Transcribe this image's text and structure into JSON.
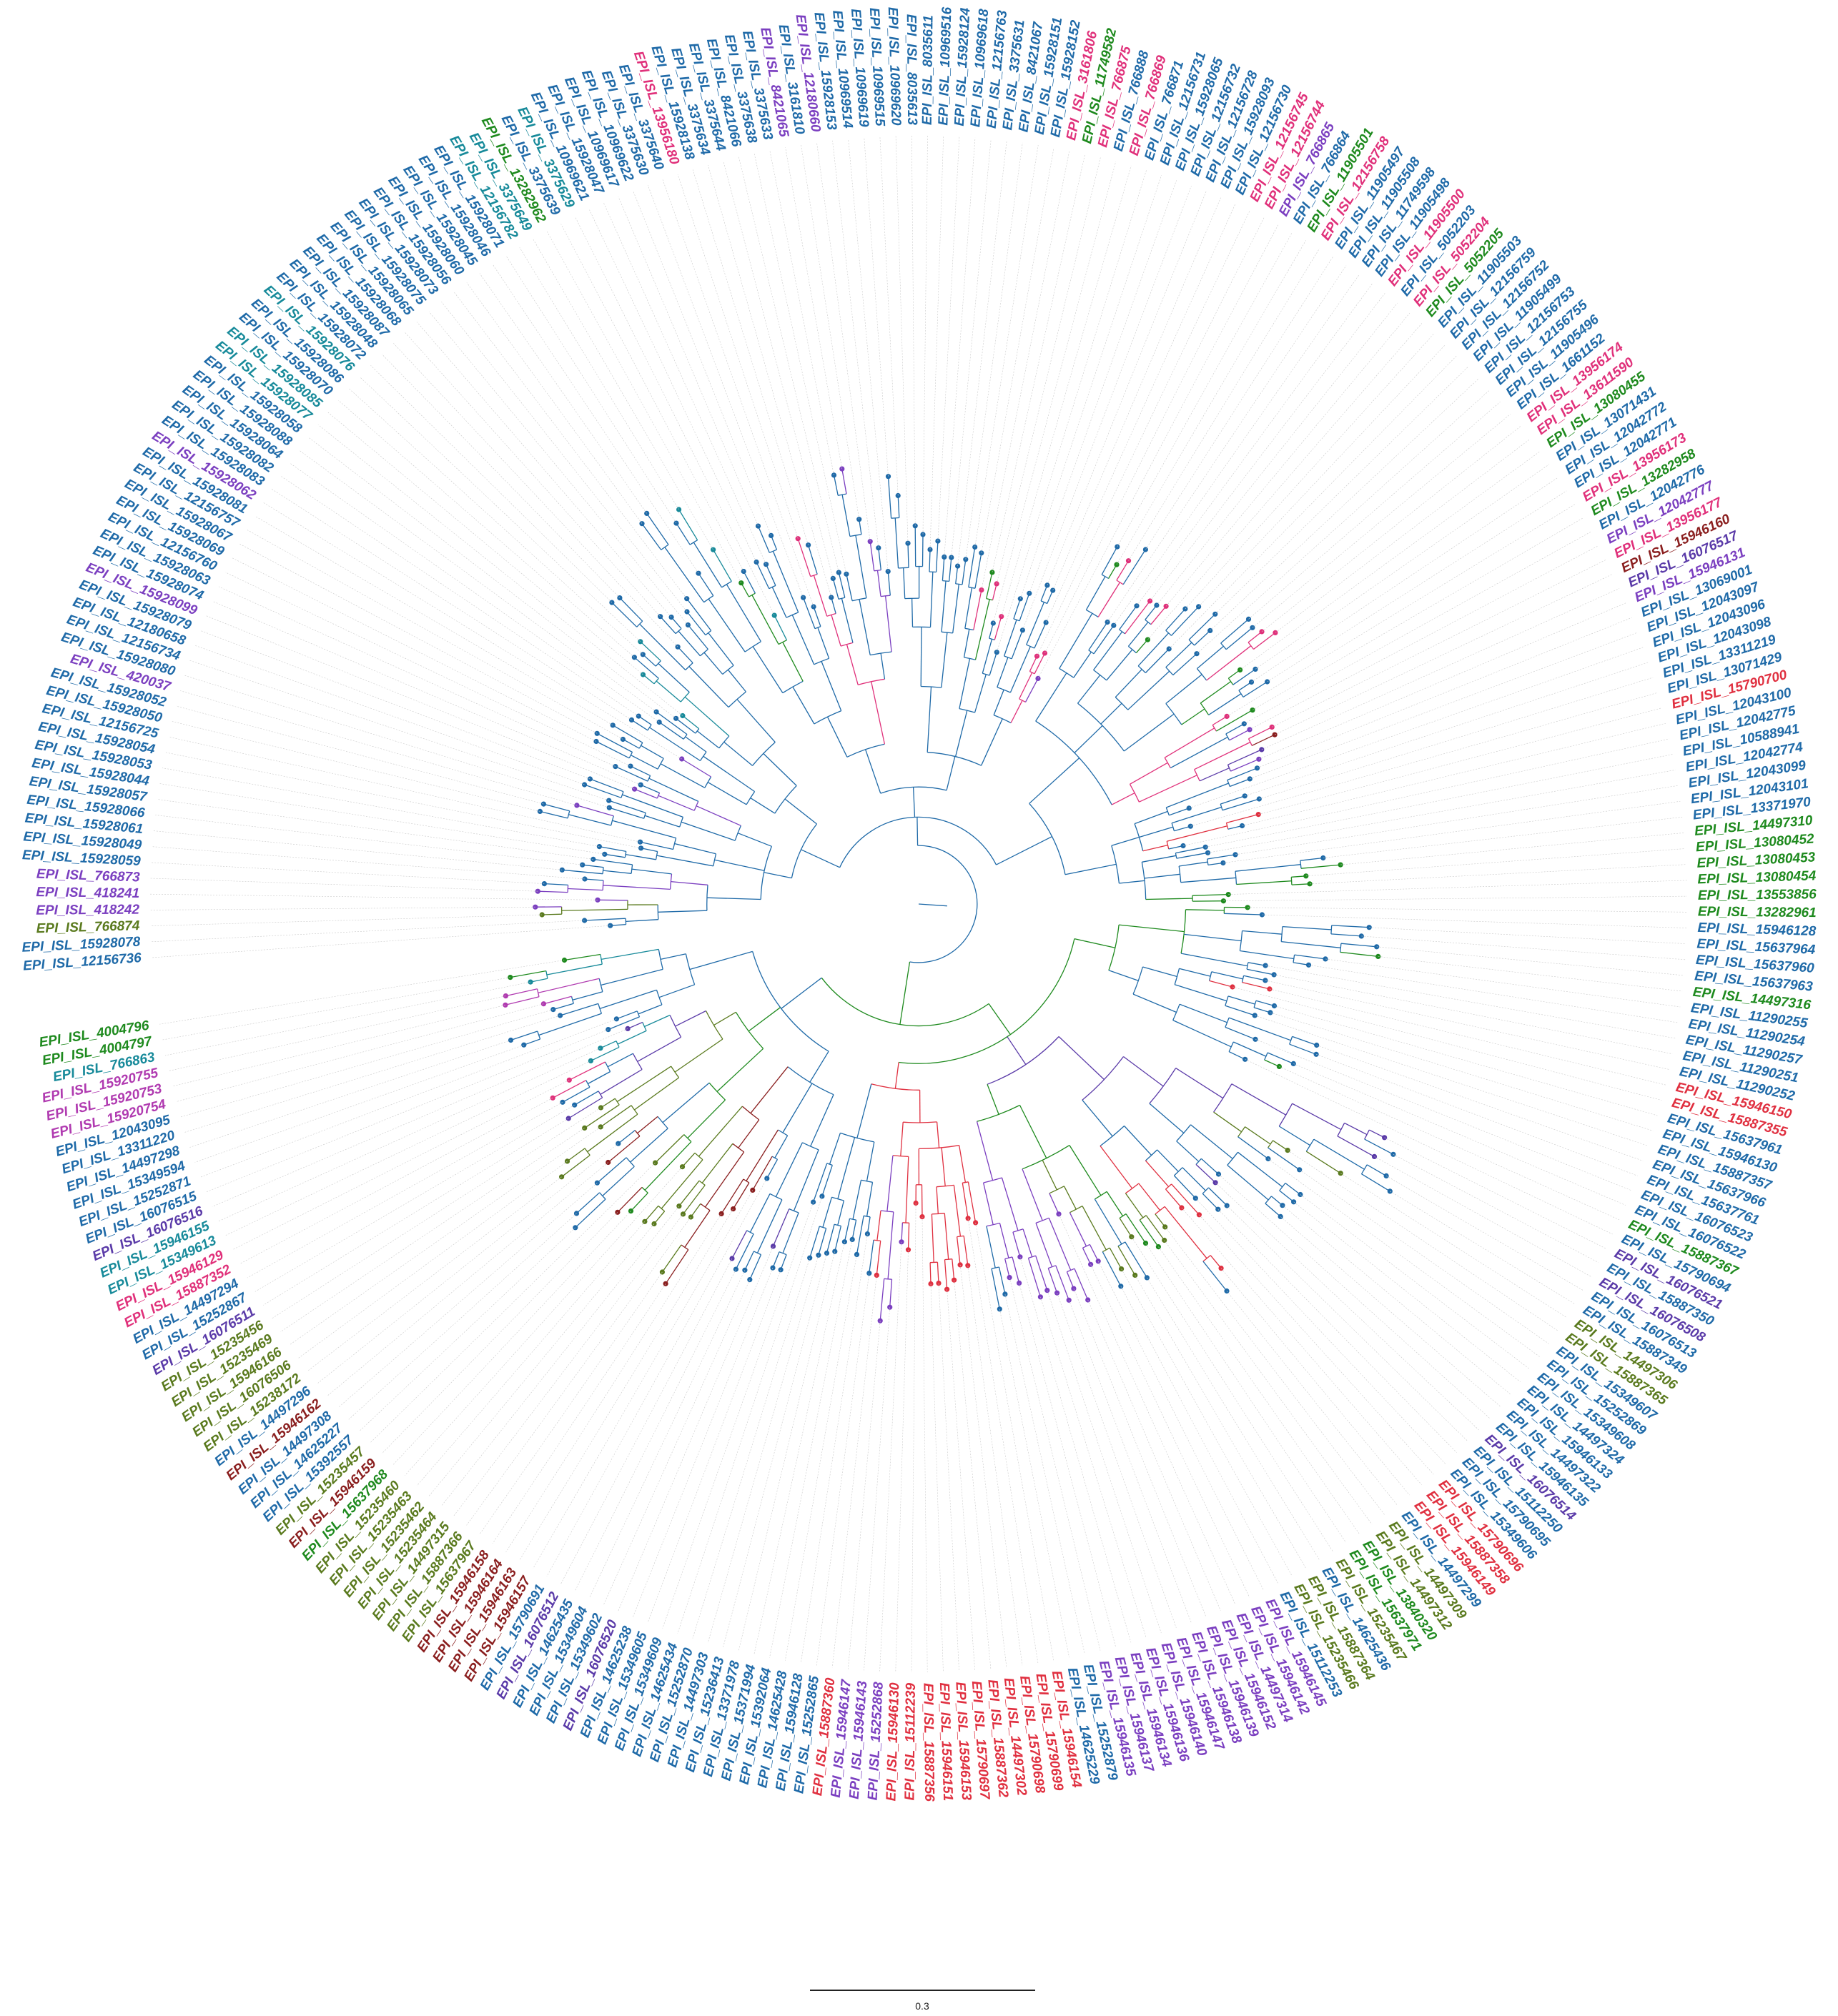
{
  "colors": {
    "blue": "#1f6aa8",
    "teal": "#178a9a",
    "purple": "#7b3fc0",
    "violet": "#5a3aa8",
    "pink": "#e0307a",
    "red": "#e03040",
    "green": "#1e8a1e",
    "olive": "#5a7a1e",
    "maroon": "#8a1e1e",
    "magenta": "#b03ab0"
  },
  "scale_bar": {
    "label": "0.3"
  },
  "tips": [
    {
      "id": "EPI_ISL_12156736",
      "c": "blue"
    },
    {
      "id": "EPI_ISL_15928078",
      "c": "blue"
    },
    {
      "id": "EPI_ISL_766874",
      "c": "olive"
    },
    {
      "id": "EPI_ISL_418242",
      "c": "purple"
    },
    {
      "id": "EPI_ISL_418241",
      "c": "purple"
    },
    {
      "id": "EPI_ISL_766873",
      "c": "purple"
    },
    {
      "id": "EPI_ISL_15928059",
      "c": "blue"
    },
    {
      "id": "EPI_ISL_15928049",
      "c": "blue"
    },
    {
      "id": "EPI_ISL_15928061",
      "c": "blue"
    },
    {
      "id": "EPI_ISL_15928066",
      "c": "blue"
    },
    {
      "id": "EPI_ISL_15928057",
      "c": "blue"
    },
    {
      "id": "EPI_ISL_15928044",
      "c": "blue"
    },
    {
      "id": "EPI_ISL_15928053",
      "c": "blue"
    },
    {
      "id": "EPI_ISL_15928054",
      "c": "blue"
    },
    {
      "id": "EPI_ISL_12156725",
      "c": "blue"
    },
    {
      "id": "EPI_ISL_15928050",
      "c": "blue"
    },
    {
      "id": "EPI_ISL_15928052",
      "c": "blue"
    },
    {
      "id": "EPI_ISL_420037",
      "c": "purple"
    },
    {
      "id": "EPI_ISL_15928080",
      "c": "blue"
    },
    {
      "id": "EPI_ISL_12156734",
      "c": "blue"
    },
    {
      "id": "EPI_ISL_12180658",
      "c": "blue"
    },
    {
      "id": "EPI_ISL_15928079",
      "c": "blue"
    },
    {
      "id": "EPI_ISL_15928099",
      "c": "purple"
    },
    {
      "id": "EPI_ISL_15928074",
      "c": "blue"
    },
    {
      "id": "EPI_ISL_15928063",
      "c": "blue"
    },
    {
      "id": "EPI_ISL_12156760",
      "c": "blue"
    },
    {
      "id": "EPI_ISL_15928069",
      "c": "blue"
    },
    {
      "id": "EPI_ISL_15928067",
      "c": "blue"
    },
    {
      "id": "EPI_ISL_12156757",
      "c": "blue"
    },
    {
      "id": "EPI_ISL_15928081",
      "c": "blue"
    },
    {
      "id": "EPI_ISL_15928062",
      "c": "purple"
    },
    {
      "id": "EPI_ISL_15928083",
      "c": "blue"
    },
    {
      "id": "EPI_ISL_15928082",
      "c": "blue"
    },
    {
      "id": "EPI_ISL_15928064",
      "c": "blue"
    },
    {
      "id": "EPI_ISL_15928088",
      "c": "blue"
    },
    {
      "id": "EPI_ISL_15928058",
      "c": "blue"
    },
    {
      "id": "EPI_ISL_15928077",
      "c": "teal"
    },
    {
      "id": "EPI_ISL_15928085",
      "c": "teal"
    },
    {
      "id": "EPI_ISL_15928070",
      "c": "blue"
    },
    {
      "id": "EPI_ISL_15928086",
      "c": "blue"
    },
    {
      "id": "EPI_ISL_15928076",
      "c": "teal"
    },
    {
      "id": "EPI_ISL_15928072",
      "c": "blue"
    },
    {
      "id": "EPI_ISL_15928048",
      "c": "blue"
    },
    {
      "id": "EPI_ISL_15928087",
      "c": "blue"
    },
    {
      "id": "EPI_ISL_15928068",
      "c": "blue"
    },
    {
      "id": "EPI_ISL_15928065",
      "c": "blue"
    },
    {
      "id": "EPI_ISL_15928075",
      "c": "blue"
    },
    {
      "id": "EPI_ISL_15928073",
      "c": "blue"
    },
    {
      "id": "EPI_ISL_15928056",
      "c": "blue"
    },
    {
      "id": "EPI_ISL_15928060",
      "c": "blue"
    },
    {
      "id": "EPI_ISL_15928045",
      "c": "blue"
    },
    {
      "id": "EPI_ISL_15928046",
      "c": "blue"
    },
    {
      "id": "EPI_ISL_15928071",
      "c": "blue"
    },
    {
      "id": "EPI_ISL_12156782",
      "c": "teal"
    },
    {
      "id": "EPI_ISL_3375649",
      "c": "teal"
    },
    {
      "id": "EPI_ISL_13282962",
      "c": "green"
    },
    {
      "id": "EPI_ISL_3375639",
      "c": "blue"
    },
    {
      "id": "EPI_ISL_3375629",
      "c": "teal"
    },
    {
      "id": "EPI_ISL_10969621",
      "c": "blue"
    },
    {
      "id": "EPI_ISL_15928047",
      "c": "blue"
    },
    {
      "id": "EPI_ISL_10969617",
      "c": "blue"
    },
    {
      "id": "EPI_ISL_10969622",
      "c": "blue"
    },
    {
      "id": "EPI_ISL_3375630",
      "c": "blue"
    },
    {
      "id": "EPI_ISL_3375640",
      "c": "blue"
    },
    {
      "id": "EPI_ISL_13956180",
      "c": "pink"
    },
    {
      "id": "EPI_ISL_15928138",
      "c": "blue"
    },
    {
      "id": "EPI_ISL_3375634",
      "c": "blue"
    },
    {
      "id": "EPI_ISL_3375644",
      "c": "blue"
    },
    {
      "id": "EPI_ISL_8421066",
      "c": "blue"
    },
    {
      "id": "EPI_ISL_3375638",
      "c": "blue"
    },
    {
      "id": "EPI_ISL_3375633",
      "c": "blue"
    },
    {
      "id": "EPI_ISL_8421065",
      "c": "purple"
    },
    {
      "id": "EPI_ISL_3161810",
      "c": "blue"
    },
    {
      "id": "EPI_ISL_12180660",
      "c": "purple"
    },
    {
      "id": "EPI_ISL_15928153",
      "c": "blue"
    },
    {
      "id": "EPI_ISL_10969514",
      "c": "blue"
    },
    {
      "id": "EPI_ISL_10969619",
      "c": "blue"
    },
    {
      "id": "EPI_ISL_10969515",
      "c": "blue"
    },
    {
      "id": "EPI_ISL_10969620",
      "c": "blue"
    },
    {
      "id": "EPI_ISL_8035613",
      "c": "blue"
    },
    {
      "id": "EPI_ISL_8035611",
      "c": "blue"
    },
    {
      "id": "EPI_ISL_10969516",
      "c": "blue"
    },
    {
      "id": "EPI_ISL_15928124",
      "c": "blue"
    },
    {
      "id": "EPI_ISL_10969618",
      "c": "blue"
    },
    {
      "id": "EPI_ISL_12156763",
      "c": "blue"
    },
    {
      "id": "EPI_ISL_3375631",
      "c": "blue"
    },
    {
      "id": "EPI_ISL_8421067",
      "c": "blue"
    },
    {
      "id": "EPI_ISL_15928151",
      "c": "blue"
    },
    {
      "id": "EPI_ISL_15928152",
      "c": "blue"
    },
    {
      "id": "EPI_ISL_3161806",
      "c": "pink"
    },
    {
      "id": "EPI_ISL_11749582",
      "c": "green"
    },
    {
      "id": "EPI_ISL_766875",
      "c": "pink"
    },
    {
      "id": "EPI_ISL_766888",
      "c": "blue"
    },
    {
      "id": "EPI_ISL_766869",
      "c": "pink"
    },
    {
      "id": "EPI_ISL_766871",
      "c": "blue"
    },
    {
      "id": "EPI_ISL_12156731",
      "c": "blue"
    },
    {
      "id": "EPI_ISL_15928065",
      "c": "blue"
    },
    {
      "id": "EPI_ISL_12156732",
      "c": "blue"
    },
    {
      "id": "EPI_ISL_12156728",
      "c": "blue"
    },
    {
      "id": "EPI_ISL_15928093",
      "c": "blue"
    },
    {
      "id": "EPI_ISL_12156730",
      "c": "blue"
    },
    {
      "id": "EPI_ISL_12156745",
      "c": "pink"
    },
    {
      "id": "EPI_ISL_12156744",
      "c": "pink"
    },
    {
      "id": "EPI_ISL_766865",
      "c": "purple"
    },
    {
      "id": "EPI_ISL_766864",
      "c": "blue"
    },
    {
      "id": "EPI_ISL_11905501",
      "c": "green"
    },
    {
      "id": "EPI_ISL_12156758",
      "c": "pink"
    },
    {
      "id": "EPI_ISL_11905497",
      "c": "blue"
    },
    {
      "id": "EPI_ISL_11905508",
      "c": "blue"
    },
    {
      "id": "EPI_ISL_11749598",
      "c": "blue"
    },
    {
      "id": "EPI_ISL_11905498",
      "c": "blue"
    },
    {
      "id": "EPI_ISL_11905500",
      "c": "pink"
    },
    {
      "id": "EPI_ISL_5052203",
      "c": "blue"
    },
    {
      "id": "EPI_ISL_5052204",
      "c": "pink"
    },
    {
      "id": "EPI_ISL_5052205",
      "c": "green"
    },
    {
      "id": "EPI_ISL_11905503",
      "c": "blue"
    },
    {
      "id": "EPI_ISL_12156759",
      "c": "blue"
    },
    {
      "id": "EPI_ISL_12156752",
      "c": "blue"
    },
    {
      "id": "EPI_ISL_11905499",
      "c": "blue"
    },
    {
      "id": "EPI_ISL_12156753",
      "c": "blue"
    },
    {
      "id": "EPI_ISL_12156755",
      "c": "blue"
    },
    {
      "id": "EPI_ISL_11905496",
      "c": "blue"
    },
    {
      "id": "EPI_ISL_1661152",
      "c": "blue"
    },
    {
      "id": "EPI_ISL_13956174",
      "c": "pink"
    },
    {
      "id": "EPI_ISL_13611590",
      "c": "pink"
    },
    {
      "id": "EPI_ISL_13080455",
      "c": "green"
    },
    {
      "id": "EPI_ISL_13071431",
      "c": "blue"
    },
    {
      "id": "EPI_ISL_12042772",
      "c": "blue"
    },
    {
      "id": "EPI_ISL_12042771",
      "c": "blue"
    },
    {
      "id": "EPI_ISL_13956173",
      "c": "pink"
    },
    {
      "id": "EPI_ISL_13282958",
      "c": "green"
    },
    {
      "id": "EPI_ISL_12042776",
      "c": "blue"
    },
    {
      "id": "EPI_ISL_12042777",
      "c": "purple"
    },
    {
      "id": "EPI_ISL_13956177",
      "c": "pink"
    },
    {
      "id": "EPI_ISL_15946160",
      "c": "maroon"
    },
    {
      "id": "EPI_ISL_16076517",
      "c": "violet"
    },
    {
      "id": "EPI_ISL_15946131",
      "c": "purple"
    },
    {
      "id": "EPI_ISL_13069001",
      "c": "blue"
    },
    {
      "id": "EPI_ISL_12043097",
      "c": "blue"
    },
    {
      "id": "EPI_ISL_12043096",
      "c": "blue"
    },
    {
      "id": "EPI_ISL_12043098",
      "c": "blue"
    },
    {
      "id": "EPI_ISL_13311219",
      "c": "blue"
    },
    {
      "id": "EPI_ISL_13071429",
      "c": "blue"
    },
    {
      "id": "EPI_ISL_15790700",
      "c": "red"
    },
    {
      "id": "EPI_ISL_12043100",
      "c": "blue"
    },
    {
      "id": "EPI_ISL_12042775",
      "c": "blue"
    },
    {
      "id": "EPI_ISL_10588941",
      "c": "blue"
    },
    {
      "id": "EPI_ISL_12042774",
      "c": "blue"
    },
    {
      "id": "EPI_ISL_12043099",
      "c": "blue"
    },
    {
      "id": "EPI_ISL_12043101",
      "c": "blue"
    },
    {
      "id": "EPI_ISL_13371970",
      "c": "blue"
    },
    {
      "id": "EPI_ISL_14497310",
      "c": "green"
    },
    {
      "id": "EPI_ISL_13080452",
      "c": "green"
    },
    {
      "id": "EPI_ISL_13080453",
      "c": "green"
    },
    {
      "id": "EPI_ISL_13080454",
      "c": "green"
    },
    {
      "id": "EPI_ISL_13553856",
      "c": "green"
    },
    {
      "id": "EPI_ISL_13282961",
      "c": "green"
    },
    {
      "id": "EPI_ISL_15946128",
      "c": "blue"
    },
    {
      "id": "EPI_ISL_15637964",
      "c": "blue"
    },
    {
      "id": "EPI_ISL_15637960",
      "c": "blue"
    },
    {
      "id": "EPI_ISL_15637963",
      "c": "blue"
    },
    {
      "id": "EPI_ISL_14497316",
      "c": "green"
    },
    {
      "id": "EPI_ISL_11290255",
      "c": "blue"
    },
    {
      "id": "EPI_ISL_11290254",
      "c": "blue"
    },
    {
      "id": "EPI_ISL_11290257",
      "c": "blue"
    },
    {
      "id": "EPI_ISL_11290251",
      "c": "blue"
    },
    {
      "id": "EPI_ISL_11290252",
      "c": "blue"
    },
    {
      "id": "EPI_ISL_15946150",
      "c": "red"
    },
    {
      "id": "EPI_ISL_15887355",
      "c": "red"
    },
    {
      "id": "EPI_ISL_15637961",
      "c": "blue"
    },
    {
      "id": "EPI_ISL_15946130",
      "c": "blue"
    },
    {
      "id": "EPI_ISL_15887357",
      "c": "blue"
    },
    {
      "id": "EPI_ISL_15637966",
      "c": "blue"
    },
    {
      "id": "EPI_ISL_15637761",
      "c": "blue"
    },
    {
      "id": "EPI_ISL_16076523",
      "c": "blue"
    },
    {
      "id": "EPI_ISL_16076522",
      "c": "blue"
    },
    {
      "id": "EPI_ISL_15887367",
      "c": "green"
    },
    {
      "id": "EPI_ISL_15790694",
      "c": "blue"
    },
    {
      "id": "EPI_ISL_16076521",
      "c": "violet"
    },
    {
      "id": "EPI_ISL_15887350",
      "c": "blue"
    },
    {
      "id": "EPI_ISL_16076508",
      "c": "violet"
    },
    {
      "id": "EPI_ISL_16076513",
      "c": "blue"
    },
    {
      "id": "EPI_ISL_15887349",
      "c": "blue"
    },
    {
      "id": "EPI_ISL_14497306",
      "c": "olive"
    },
    {
      "id": "EPI_ISL_15887365",
      "c": "olive"
    },
    {
      "id": "EPI_ISL_15349607",
      "c": "blue"
    },
    {
      "id": "EPI_ISL_15252869",
      "c": "blue"
    },
    {
      "id": "EPI_ISL_15349608",
      "c": "blue"
    },
    {
      "id": "EPI_ISL_14497324",
      "c": "blue"
    },
    {
      "id": "EPI_ISL_15946133",
      "c": "blue"
    },
    {
      "id": "EPI_ISL_14497322",
      "c": "blue"
    },
    {
      "id": "EPI_ISL_15946135",
      "c": "blue"
    },
    {
      "id": "EPI_ISL_16076514",
      "c": "violet"
    },
    {
      "id": "EPI_ISL_15112250",
      "c": "blue"
    },
    {
      "id": "EPI_ISL_15790695",
      "c": "blue"
    },
    {
      "id": "EPI_ISL_15349606",
      "c": "blue"
    },
    {
      "id": "EPI_ISL_15790696",
      "c": "red"
    },
    {
      "id": "EPI_ISL_15887358",
      "c": "red"
    },
    {
      "id": "EPI_ISL_15946149",
      "c": "red"
    },
    {
      "id": "EPI_ISL_14497299",
      "c": "blue"
    },
    {
      "id": "EPI_ISL_14497309",
      "c": "olive"
    },
    {
      "id": "EPI_ISL_14497312",
      "c": "olive"
    },
    {
      "id": "EPI_ISL_13840320",
      "c": "green"
    },
    {
      "id": "EPI_ISL_15637971",
      "c": "green"
    },
    {
      "id": "EPI_ISL_15235467",
      "c": "olive"
    },
    {
      "id": "EPI_ISL_14625436",
      "c": "blue"
    },
    {
      "id": "EPI_ISL_15887364",
      "c": "olive"
    },
    {
      "id": "EPI_ISL_15235466",
      "c": "olive"
    },
    {
      "id": "EPI_ISL_15112253",
      "c": "blue"
    },
    {
      "id": "EPI_ISL_15946145",
      "c": "purple"
    },
    {
      "id": "EPI_ISL_15946142",
      "c": "purple"
    },
    {
      "id": "EPI_ISL_14497314",
      "c": "purple"
    },
    {
      "id": "EPI_ISL_15946152",
      "c": "purple"
    },
    {
      "id": "EPI_ISL_15946139",
      "c": "purple"
    },
    {
      "id": "EPI_ISL_15946138",
      "c": "purple"
    },
    {
      "id": "EPI_ISL_15946147",
      "c": "purple"
    },
    {
      "id": "EPI_ISL_15946140",
      "c": "purple"
    },
    {
      "id": "EPI_ISL_15946136",
      "c": "purple"
    },
    {
      "id": "EPI_ISL_15946134",
      "c": "purple"
    },
    {
      "id": "EPI_ISL_15946137",
      "c": "purple"
    },
    {
      "id": "EPI_ISL_15946135",
      "c": "purple"
    },
    {
      "id": "EPI_ISL_15252879",
      "c": "blue"
    },
    {
      "id": "EPI_ISL_14625229",
      "c": "blue"
    },
    {
      "id": "EPI_ISL_15946154",
      "c": "red"
    },
    {
      "id": "EPI_ISL_15790699",
      "c": "red"
    },
    {
      "id": "EPI_ISL_15790698",
      "c": "red"
    },
    {
      "id": "EPI_ISL_14497302",
      "c": "red"
    },
    {
      "id": "EPI_ISL_15887362",
      "c": "red"
    },
    {
      "id": "EPI_ISL_15790697",
      "c": "red"
    },
    {
      "id": "EPI_ISL_15946153",
      "c": "red"
    },
    {
      "id": "EPI_ISL_15946151",
      "c": "red"
    },
    {
      "id": "EPI_ISL_15887356",
      "c": "red"
    },
    {
      "id": "EPI_ISL_15112239",
      "c": "red"
    },
    {
      "id": "EPI_ISL_15946130",
      "c": "red"
    },
    {
      "id": "EPI_ISL_15252868",
      "c": "purple"
    },
    {
      "id": "EPI_ISL_15946143",
      "c": "purple"
    },
    {
      "id": "EPI_ISL_15946147",
      "c": "purple"
    },
    {
      "id": "EPI_ISL_15887360",
      "c": "red"
    },
    {
      "id": "EPI_ISL_15252865",
      "c": "blue"
    },
    {
      "id": "EPI_ISL_15946128",
      "c": "blue"
    },
    {
      "id": "EPI_ISL_14625428",
      "c": "blue"
    },
    {
      "id": "EPI_ISL_15392064",
      "c": "blue"
    },
    {
      "id": "EPI_ISL_15371994",
      "c": "blue"
    },
    {
      "id": "EPI_ISL_13371978",
      "c": "blue"
    },
    {
      "id": "EPI_ISL_15236413",
      "c": "blue"
    },
    {
      "id": "EPI_ISL_14497303",
      "c": "blue"
    },
    {
      "id": "EPI_ISL_15252870",
      "c": "blue"
    },
    {
      "id": "EPI_ISL_14625434",
      "c": "blue"
    },
    {
      "id": "EPI_ISL_15349609",
      "c": "blue"
    },
    {
      "id": "EPI_ISL_15349605",
      "c": "blue"
    },
    {
      "id": "EPI_ISL_14625238",
      "c": "blue"
    },
    {
      "id": "EPI_ISL_16076520",
      "c": "violet"
    },
    {
      "id": "EPI_ISL_15349602",
      "c": "blue"
    },
    {
      "id": "EPI_ISL_15349604",
      "c": "blue"
    },
    {
      "id": "EPI_ISL_14625435",
      "c": "blue"
    },
    {
      "id": "EPI_ISL_16076512",
      "c": "violet"
    },
    {
      "id": "EPI_ISL_15790691",
      "c": "blue"
    },
    {
      "id": "EPI_ISL_15946157",
      "c": "maroon"
    },
    {
      "id": "EPI_ISL_15946163",
      "c": "maroon"
    },
    {
      "id": "EPI_ISL_15946164",
      "c": "maroon"
    },
    {
      "id": "EPI_ISL_15946158",
      "c": "maroon"
    },
    {
      "id": "EPI_ISL_15637967",
      "c": "olive"
    },
    {
      "id": "EPI_ISL_15887366",
      "c": "olive"
    },
    {
      "id": "EPI_ISL_14497315",
      "c": "olive"
    },
    {
      "id": "EPI_ISL_15235464",
      "c": "olive"
    },
    {
      "id": "EPI_ISL_15235462",
      "c": "olive"
    },
    {
      "id": "EPI_ISL_15235463",
      "c": "olive"
    },
    {
      "id": "EPI_ISL_15235460",
      "c": "olive"
    },
    {
      "id": "EPI_ISL_15637968",
      "c": "green"
    },
    {
      "id": "EPI_ISL_15946159",
      "c": "maroon"
    },
    {
      "id": "EPI_ISL_15235457",
      "c": "olive"
    },
    {
      "id": "EPI_ISL_15392557",
      "c": "blue"
    },
    {
      "id": "EPI_ISL_14625227",
      "c": "blue"
    },
    {
      "id": "EPI_ISL_14497308",
      "c": "blue"
    },
    {
      "id": "EPI_ISL_15946162",
      "c": "maroon"
    },
    {
      "id": "EPI_ISL_14497296",
      "c": "blue"
    },
    {
      "id": "EPI_ISL_15238172",
      "c": "olive"
    },
    {
      "id": "EPI_ISL_16076506",
      "c": "olive"
    },
    {
      "id": "EPI_ISL_15946166",
      "c": "olive"
    },
    {
      "id": "EPI_ISL_15235469",
      "c": "olive"
    },
    {
      "id": "EPI_ISL_15235456",
      "c": "olive"
    },
    {
      "id": "EPI_ISL_16076511",
      "c": "violet"
    },
    {
      "id": "EPI_ISL_15252867",
      "c": "blue"
    },
    {
      "id": "EPI_ISL_14497294",
      "c": "blue"
    },
    {
      "id": "EPI_ISL_15887352",
      "c": "pink"
    },
    {
      "id": "EPI_ISL_15946129",
      "c": "pink"
    },
    {
      "id": "EPI_ISL_15349613",
      "c": "teal"
    },
    {
      "id": "EPI_ISL_15946155",
      "c": "teal"
    },
    {
      "id": "EPI_ISL_16076516",
      "c": "violet"
    },
    {
      "id": "EPI_ISL_16076515",
      "c": "blue"
    },
    {
      "id": "EPI_ISL_15252871",
      "c": "blue"
    },
    {
      "id": "EPI_ISL_15349594",
      "c": "blue"
    },
    {
      "id": "EPI_ISL_14497298",
      "c": "blue"
    },
    {
      "id": "EPI_ISL_13311220",
      "c": "blue"
    },
    {
      "id": "EPI_ISL_12043095",
      "c": "blue"
    },
    {
      "id": "EPI_ISL_15920754",
      "c": "magenta"
    },
    {
      "id": "EPI_ISL_15920753",
      "c": "magenta"
    },
    {
      "id": "EPI_ISL_15920755",
      "c": "magenta"
    },
    {
      "id": "EPI_ISL_766863",
      "c": "teal"
    },
    {
      "id": "EPI_ISL_4004797",
      "c": "green"
    },
    {
      "id": "EPI_ISL_4004796",
      "c": "green"
    }
  ]
}
